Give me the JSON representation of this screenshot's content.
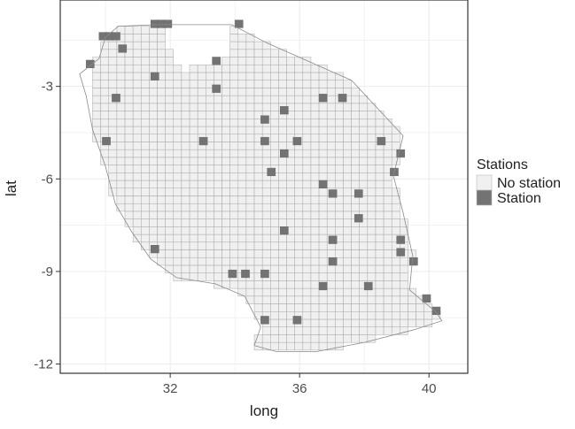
{
  "chart_data": {
    "type": "heatmap",
    "title": "",
    "xlabel": "long",
    "ylabel": "lat",
    "xlim": [
      28.6,
      41.2
    ],
    "ylim": [
      -12.3,
      -0.2
    ],
    "xticks": [
      "32",
      "36",
      "40"
    ],
    "yticks": [
      "-3",
      "-6",
      "-9",
      "-12"
    ],
    "xtick_values": [
      32,
      36,
      40
    ],
    "ytick_values": [
      -3,
      -6,
      -9,
      -12
    ],
    "grid": true,
    "legend": {
      "title": "Stations",
      "position": "right",
      "entries": [
        {
          "label": "No station",
          "color": "#f0f0f0"
        },
        {
          "label": "Station",
          "color": "#737373"
        }
      ]
    },
    "cell_size_deg": 0.25,
    "grid_origin_deg": [
      29.6,
      -11.8
    ],
    "outline_deg": [
      [
        30.4,
        -1.05
      ],
      [
        31.6,
        -1.0
      ],
      [
        33.9,
        -1.0
      ],
      [
        35.0,
        -1.6
      ],
      [
        37.6,
        -2.8
      ],
      [
        39.2,
        -4.6
      ],
      [
        38.9,
        -5.9
      ],
      [
        39.2,
        -7.1
      ],
      [
        39.5,
        -8.5
      ],
      [
        39.4,
        -9.6
      ],
      [
        40.2,
        -10.3
      ],
      [
        40.4,
        -10.6
      ],
      [
        39.5,
        -10.9
      ],
      [
        38.0,
        -11.3
      ],
      [
        36.5,
        -11.6
      ],
      [
        35.3,
        -11.6
      ],
      [
        34.6,
        -11.4
      ],
      [
        34.8,
        -10.8
      ],
      [
        34.3,
        -9.8
      ],
      [
        33.4,
        -9.4
      ],
      [
        32.2,
        -9.2
      ],
      [
        31.4,
        -8.6
      ],
      [
        30.8,
        -7.7
      ],
      [
        30.3,
        -6.8
      ],
      [
        30.0,
        -5.6
      ],
      [
        29.6,
        -4.4
      ],
      [
        29.4,
        -3.3
      ],
      [
        29.2,
        -2.6
      ],
      [
        29.8,
        -2.1
      ],
      [
        30.0,
        -1.4
      ]
    ],
    "lake_victoria_bite_deg": [
      [
        31.7,
        -1.0
      ],
      [
        32.0,
        -2.0
      ],
      [
        32.5,
        -2.6
      ],
      [
        33.0,
        -2.2
      ],
      [
        33.5,
        -2.4
      ],
      [
        33.8,
        -1.8
      ],
      [
        33.9,
        -1.0
      ]
    ],
    "station_cells_deg": [
      [
        29.8,
        -1.5
      ],
      [
        30.0,
        -1.5
      ],
      [
        30.2,
        -1.5
      ],
      [
        29.4,
        -2.4
      ],
      [
        30.4,
        -1.9
      ],
      [
        31.4,
        -1.1
      ],
      [
        31.6,
        -1.1
      ],
      [
        31.8,
        -1.1
      ],
      [
        34.0,
        -1.1
      ],
      [
        33.3,
        -2.3
      ],
      [
        31.4,
        -2.8
      ],
      [
        30.2,
        -3.5
      ],
      [
        33.3,
        -3.2
      ],
      [
        36.6,
        -3.5
      ],
      [
        37.2,
        -3.5
      ],
      [
        35.4,
        -3.9
      ],
      [
        34.8,
        -4.2
      ],
      [
        32.9,
        -4.9
      ],
      [
        34.8,
        -4.9
      ],
      [
        35.8,
        -4.9
      ],
      [
        35.4,
        -5.3
      ],
      [
        38.4,
        -4.9
      ],
      [
        39.0,
        -5.3
      ],
      [
        29.9,
        -4.9
      ],
      [
        35.0,
        -5.9
      ],
      [
        38.8,
        -5.9
      ],
      [
        36.6,
        -6.3
      ],
      [
        36.9,
        -6.6
      ],
      [
        37.7,
        -6.6
      ],
      [
        37.7,
        -7.4
      ],
      [
        35.4,
        -7.8
      ],
      [
        36.9,
        -8.1
      ],
      [
        39.0,
        -8.1
      ],
      [
        39.0,
        -8.5
      ],
      [
        31.4,
        -8.4
      ],
      [
        36.9,
        -8.8
      ],
      [
        39.4,
        -8.8
      ],
      [
        33.8,
        -9.2
      ],
      [
        34.2,
        -9.2
      ],
      [
        34.8,
        -9.2
      ],
      [
        36.6,
        -9.6
      ],
      [
        38.0,
        -9.6
      ],
      [
        39.8,
        -10.0
      ],
      [
        40.1,
        -10.4
      ],
      [
        34.8,
        -10.7
      ],
      [
        35.8,
        -10.7
      ]
    ]
  }
}
